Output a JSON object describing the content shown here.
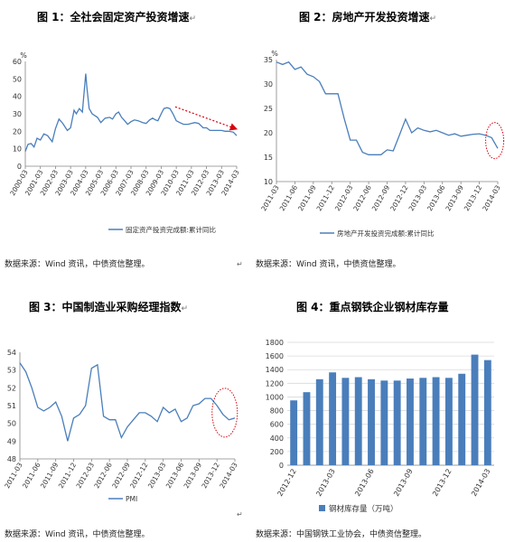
{
  "panels": [
    {
      "title": "图 1：全社会固定资产投资增速",
      "source": "数据来源：Wind 资讯，中债资信整理。"
    },
    {
      "title": "图 2：房地产开发投资增速",
      "source": "数据来源：Wind 资讯，中债资信整理。"
    },
    {
      "title": "图 3：中国制造业采购经理指数",
      "source": "数据来源：Wind 资讯，中债资信整理。"
    },
    {
      "title": "图 4：重点钢铁企业钢材库存量",
      "source": "数据来源：中国钢铁工业协会，中债资信整理。"
    }
  ],
  "para_mark": "↵",
  "chart_data": [
    {
      "type": "line",
      "title": "图 1：全社会固定资产投资增速",
      "ylabel": "%",
      "ylim": [
        0,
        60
      ],
      "yticks": [
        0,
        10,
        20,
        30,
        40,
        50,
        60
      ],
      "xlim": [
        2000.17,
        2014.17
      ],
      "xtick_labels": [
        "2000-03",
        "2001-03",
        "2002-03",
        "2003-03",
        "2004-03",
        "2005-03",
        "2006-03",
        "2007-03",
        "2008-03",
        "2009-03",
        "2010-03",
        "2011-03",
        "2012-03",
        "2013-03",
        "2014-03"
      ],
      "legend": "top-right",
      "colors": {
        "line": "#4a7ebb",
        "annotation": "#d9000d"
      },
      "series": [
        {
          "name": "固定资产投资完成额:累计同比",
          "x": [
            2000.17,
            2000.35,
            2000.55,
            2000.75,
            2000.95,
            2001.17,
            2001.4,
            2001.65,
            2001.95,
            2002.17,
            2002.4,
            2002.65,
            2002.95,
            2003.17,
            2003.4,
            2003.55,
            2003.75,
            2003.95,
            2004.17,
            2004.25,
            2004.4,
            2004.6,
            2004.95,
            2005.17,
            2005.45,
            2005.75,
            2005.95,
            2006.17,
            2006.35,
            2006.55,
            2006.75,
            2006.95,
            2007.17,
            2007.4,
            2007.65,
            2007.95,
            2008.17,
            2008.4,
            2008.6,
            2008.8,
            2008.95,
            2009.17,
            2009.35,
            2009.55,
            2009.75,
            2009.95,
            2010.17,
            2010.4,
            2010.65,
            2010.95,
            2011.17,
            2011.4,
            2011.65,
            2011.95,
            2012.17,
            2012.4,
            2012.65,
            2012.95,
            2013.17,
            2013.4,
            2013.65,
            2013.95,
            2014.17
          ],
          "values": [
            8.5,
            12.5,
            13,
            11,
            16,
            15,
            18.5,
            17.5,
            14,
            21.5,
            27,
            24.5,
            20.5,
            22,
            32,
            30,
            33,
            31,
            53,
            45,
            33,
            30,
            28,
            25,
            27.5,
            28,
            27,
            30,
            31,
            28,
            26,
            24,
            25.5,
            26.5,
            26,
            25,
            24.5,
            26.5,
            27.5,
            26.5,
            26,
            30,
            33,
            33.5,
            33,
            30,
            26,
            25,
            24,
            24,
            24.5,
            25,
            24.5,
            22,
            22,
            20.5,
            20.5,
            20.5,
            20.5,
            20,
            20,
            19.5,
            17.5
          ]
        }
      ],
      "annotation": "dashed red arrow pointing down-right"
    },
    {
      "type": "line",
      "title": "图 2：房地产开发投资增速",
      "ylabel": "%",
      "ylim": [
        10,
        35
      ],
      "yticks": [
        10,
        15,
        20,
        25,
        30,
        35
      ],
      "xtick_labels": [
        "2011-03",
        "2011-06",
        "2011-09",
        "2011-12",
        "2012-03",
        "2012-06",
        "2012-09",
        "2012-12",
        "2013-03",
        "2013-06",
        "2013-09",
        "2013-12",
        "2014-03"
      ],
      "legend": "bottom",
      "colors": {
        "line": "#4a7ebb",
        "annotation": "#d9000d"
      },
      "series": [
        {
          "name": "房地产开发投资完成额:累计同比",
          "x": [
            0,
            1,
            2,
            3,
            4,
            5,
            6,
            7,
            8,
            9,
            10,
            11,
            12,
            13,
            14,
            15,
            16,
            17,
            18,
            19,
            20,
            21,
            22,
            23,
            24,
            25,
            26,
            27,
            28,
            29,
            30,
            31,
            32,
            33,
            34,
            35,
            36
          ],
          "values": [
            34.5,
            34,
            34.5,
            33,
            33.5,
            32,
            31.5,
            30.5,
            28,
            28,
            28,
            23,
            18.5,
            18.5,
            16,
            15.5,
            15.5,
            15.5,
            16.5,
            16.3,
            19.5,
            22.8,
            20,
            21,
            20.5,
            20.2,
            20.5,
            20,
            19.5,
            19.8,
            19.3,
            19.5,
            19.7,
            19.8,
            19.5,
            19,
            16.8
          ]
        }
      ],
      "annotation": "dotted red ellipse around latest values"
    },
    {
      "type": "line",
      "title": "图 3：中国制造业采购经理指数",
      "ylim": [
        48,
        54
      ],
      "yticks": [
        48,
        49,
        50,
        51,
        52,
        53,
        54
      ],
      "xtick_labels": [
        "2011-03",
        "2011-06",
        "2011-09",
        "2011-12",
        "2012-03",
        "2012-06",
        "2012-09",
        "2012-12",
        "2013-03",
        "2013-06",
        "2013-09",
        "2013-12",
        "2014-03"
      ],
      "legend": "bottom-left",
      "colors": {
        "line": "#4a7ebb",
        "annotation": "#d9000d"
      },
      "series": [
        {
          "name": "PMI",
          "x": [
            0,
            1,
            2,
            3,
            4,
            5,
            6,
            7,
            8,
            9,
            10,
            11,
            12,
            13,
            14,
            15,
            16,
            17,
            18,
            19,
            20,
            21,
            22,
            23,
            24,
            25,
            26,
            27,
            28,
            29,
            30,
            31,
            32,
            33,
            34,
            35,
            36
          ],
          "values": [
            53.4,
            52.9,
            52.0,
            50.9,
            50.7,
            50.9,
            51.2,
            50.4,
            49.0,
            50.3,
            50.5,
            51.0,
            53.1,
            53.3,
            50.4,
            50.2,
            50.2,
            49.2,
            49.8,
            50.2,
            50.6,
            50.6,
            50.4,
            50.1,
            50.9,
            50.6,
            50.8,
            50.1,
            50.3,
            51.0,
            51.1,
            51.4,
            51.4,
            51.0,
            50.5,
            50.2,
            50.3
          ]
        }
      ],
      "annotation": "dotted red ellipse around latest values"
    },
    {
      "type": "bar",
      "title": "图 4：重点钢铁企业钢材库存量",
      "ylim": [
        0,
        1800
      ],
      "yticks": [
        0,
        200,
        400,
        600,
        800,
        1000,
        1200,
        1400,
        1600,
        1800
      ],
      "categories": [
        "2012-12",
        "2013-01",
        "2013-02",
        "2013-03",
        "2013-04",
        "2013-05",
        "2013-06",
        "2013-07",
        "2013-08",
        "2013-09",
        "2013-10",
        "2013-11",
        "2013-12",
        "2014-01",
        "2014-02",
        "2014-03"
      ],
      "xtick_labels": [
        "2012-12",
        "2013-03",
        "2013-06",
        "2013-09",
        "2013-12",
        "2014-03"
      ],
      "legend": "bottom",
      "colors": {
        "bar": "#4a7ebb"
      },
      "series": [
        {
          "name": "钢材库存量（万吨）",
          "values": [
            950,
            1070,
            1260,
            1360,
            1280,
            1290,
            1260,
            1240,
            1240,
            1270,
            1280,
            1290,
            1280,
            1340,
            1620,
            1540
          ]
        }
      ]
    }
  ]
}
